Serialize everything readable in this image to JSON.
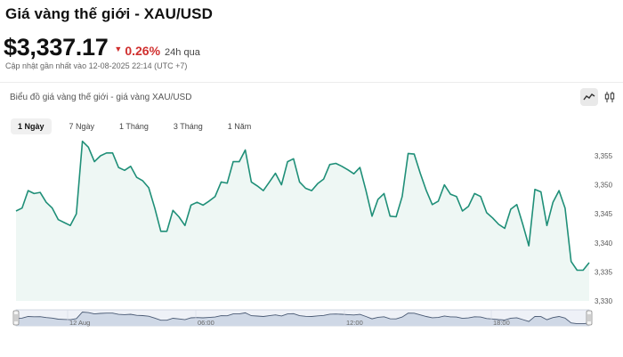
{
  "header": {
    "title": "Giá vàng thế giới - XAU/USD",
    "price": "$3,337.17",
    "change": "0.26%",
    "period": "24h qua",
    "updated": "Cập nhật gần nhất vào 12-08-2025 22:14 (UTC +7)"
  },
  "card": {
    "title": "Biểu đồ giá vàng thế giới - giá vàng XAU/USD",
    "tabs": [
      "1 Ngày",
      "7 Ngày",
      "1 Tháng",
      "3 Tháng",
      "1 Năm"
    ],
    "active_tab": "1 Ngày"
  },
  "icons": {
    "line_chart": "line-chart-icon",
    "candlestick": "candlestick-icon",
    "change_direction": "caret-down-icon"
  },
  "colors": {
    "line": "#1f8f78",
    "fill": "#eef7f4",
    "negative": "#d0302f",
    "navigator_fill": "#cfd8e6",
    "navigator_line": "#4a5a74"
  },
  "chart_data": {
    "type": "area",
    "y_ticks": [
      "3,330",
      "3,335",
      "3,340",
      "3,345",
      "3,350",
      "3,355"
    ],
    "ylim": [
      3330,
      3357
    ],
    "y_values": [
      3345.5,
      3346,
      3349,
      3348.5,
      3348.7,
      3347,
      3346,
      3344,
      3343.5,
      3343,
      3345,
      3357.5,
      3356.5,
      3354,
      3355,
      3355.5,
      3355.5,
      3353,
      3352.5,
      3353.2,
      3351.3,
      3350.7,
      3349.5,
      3346,
      3342,
      3342,
      3345.6,
      3344.5,
      3343,
      3346.5,
      3347,
      3346.5,
      3347.2,
      3348,
      3350.5,
      3350.3,
      3354,
      3354,
      3356,
      3350.5,
      3349.8,
      3349,
      3350.5,
      3352,
      3350,
      3354,
      3354.5,
      3350.5,
      3349.4,
      3349,
      3350.2,
      3351,
      3353.5,
      3353.7,
      3353.2,
      3352.6,
      3351.9,
      3353,
      3349,
      3344.6,
      3347.5,
      3348.5,
      3344.6,
      3344.5,
      3348,
      3355.4,
      3355.3,
      3352,
      3349,
      3346.6,
      3347.2,
      3350,
      3348.4,
      3348,
      3345.5,
      3346.3,
      3348.5,
      3348,
      3345.2,
      3344.3,
      3343.2,
      3342.5,
      3345.8,
      3346.6,
      3343.2,
      3339.5,
      3349.2,
      3348.8,
      3343,
      3347,
      3349,
      3346,
      3336.8,
      3335.3,
      3335.3,
      3336.6
    ],
    "navigator_labels": [
      "12 Aug",
      "06:00",
      "12:00",
      "18:00"
    ],
    "grid": false,
    "legend": "none"
  }
}
